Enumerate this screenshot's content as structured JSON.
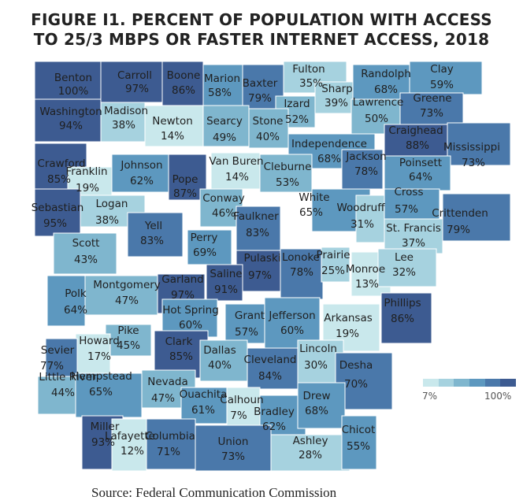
{
  "title_line1": "FIGURE I1. PERCENT OF POPULATION WITH ACCESS",
  "title_line2": "TO 25/3 MBPS OR FASTER INTERNET ACCESS, 2018",
  "source": "Source: Federal Communication Commission",
  "legend": {
    "min_label": "7%",
    "max_label": "100%",
    "colors": [
      "#c9e8ec",
      "#a6d2df",
      "#7fb6ce",
      "#5d98bf",
      "#4a78aa",
      "#3d5b91"
    ]
  },
  "counties": [
    {
      "name": "Benton",
      "value": "100%",
      "pct": 100
    },
    {
      "name": "Carroll",
      "value": "97%",
      "pct": 97
    },
    {
      "name": "Boone",
      "value": "86%",
      "pct": 86
    },
    {
      "name": "Marion",
      "value": "58%",
      "pct": 58
    },
    {
      "name": "Baxter",
      "value": "79%",
      "pct": 79
    },
    {
      "name": "Fulton",
      "value": "35%",
      "pct": 35
    },
    {
      "name": "Sharp",
      "value": "39%",
      "pct": 39
    },
    {
      "name": "Randolph",
      "value": "68%",
      "pct": 68
    },
    {
      "name": "Clay",
      "value": "59%",
      "pct": 59
    },
    {
      "name": "Izard",
      "value": "52%",
      "pct": 52
    },
    {
      "name": "Lawrence",
      "value": "50%",
      "pct": 50
    },
    {
      "name": "Greene",
      "value": "73%",
      "pct": 73
    },
    {
      "name": "Washington",
      "value": "94%",
      "pct": 94
    },
    {
      "name": "Madison",
      "value": "38%",
      "pct": 38
    },
    {
      "name": "Newton",
      "value": "14%",
      "pct": 14
    },
    {
      "name": "Searcy",
      "value": "49%",
      "pct": 49
    },
    {
      "name": "Stone",
      "value": "40%",
      "pct": 40
    },
    {
      "name": "Craighead",
      "value": "88%",
      "pct": 88
    },
    {
      "name": "Mississippi",
      "value": "73%",
      "pct": 73
    },
    {
      "name": "Independence",
      "value": "68%",
      "pct": 68
    },
    {
      "name": "Jackson",
      "value": "78%",
      "pct": 78
    },
    {
      "name": "Poinsett",
      "value": "64%",
      "pct": 64
    },
    {
      "name": "Crawford",
      "value": "85%",
      "pct": 85
    },
    {
      "name": "Franklin",
      "value": "19%",
      "pct": 19
    },
    {
      "name": "Johnson",
      "value": "62%",
      "pct": 62
    },
    {
      "name": "Pope",
      "value": "87%",
      "pct": 87
    },
    {
      "name": "Van Buren",
      "value": "14%",
      "pct": 14
    },
    {
      "name": "Cleburne",
      "value": "53%",
      "pct": 53
    },
    {
      "name": "White",
      "value": "65%",
      "pct": 65
    },
    {
      "name": "Woodruff",
      "value": "31%",
      "pct": 31
    },
    {
      "name": "Cross",
      "value": "57%",
      "pct": 57
    },
    {
      "name": "Crittenden",
      "value": "79%",
      "pct": 79
    },
    {
      "name": "Sebastian",
      "value": "95%",
      "pct": 95
    },
    {
      "name": "Logan",
      "value": "38%",
      "pct": 38
    },
    {
      "name": "Yell",
      "value": "83%",
      "pct": 83
    },
    {
      "name": "Conway",
      "value": "46%",
      "pct": 46
    },
    {
      "name": "Faulkner",
      "value": "83%",
      "pct": 83
    },
    {
      "name": "St. Francis",
      "value": "37%",
      "pct": 37
    },
    {
      "name": "Scott",
      "value": "43%",
      "pct": 43
    },
    {
      "name": "Perry",
      "value": "69%",
      "pct": 69
    },
    {
      "name": "Pulaski",
      "value": "97%",
      "pct": 97
    },
    {
      "name": "Lonoke",
      "value": "78%",
      "pct": 78
    },
    {
      "name": "Prairie",
      "value": "25%",
      "pct": 25
    },
    {
      "name": "Monroe",
      "value": "13%",
      "pct": 13
    },
    {
      "name": "Lee",
      "value": "32%",
      "pct": 32
    },
    {
      "name": "Montgomery",
      "value": "47%",
      "pct": 47
    },
    {
      "name": "Garland",
      "value": "97%",
      "pct": 97
    },
    {
      "name": "Saline",
      "value": "91%",
      "pct": 91
    },
    {
      "name": "Polk",
      "value": "64%",
      "pct": 64
    },
    {
      "name": "Hot Spring",
      "value": "60%",
      "pct": 60
    },
    {
      "name": "Grant",
      "value": "57%",
      "pct": 57
    },
    {
      "name": "Jefferson",
      "value": "60%",
      "pct": 60
    },
    {
      "name": "Arkansas",
      "value": "19%",
      "pct": 19
    },
    {
      "name": "Phillips",
      "value": "86%",
      "pct": 86
    },
    {
      "name": "Pike",
      "value": "45%",
      "pct": 45
    },
    {
      "name": "Howard",
      "value": "17%",
      "pct": 17
    },
    {
      "name": "Sevier",
      "value": "77%",
      "pct": 77
    },
    {
      "name": "Clark",
      "value": "85%",
      "pct": 85
    },
    {
      "name": "Dallas",
      "value": "40%",
      "pct": 40
    },
    {
      "name": "Cleveland",
      "value": "84%",
      "pct": 84
    },
    {
      "name": "Lincoln",
      "value": "30%",
      "pct": 30
    },
    {
      "name": "Desha",
      "value": "70%",
      "pct": 70
    },
    {
      "name": "Little River",
      "value": "44%",
      "pct": 44
    },
    {
      "name": "Hempstead",
      "value": "65%",
      "pct": 65
    },
    {
      "name": "Nevada",
      "value": "47%",
      "pct": 47
    },
    {
      "name": "Ouachita",
      "value": "61%",
      "pct": 61
    },
    {
      "name": "Calhoun",
      "value": "7%",
      "pct": 7
    },
    {
      "name": "Bradley",
      "value": "62%",
      "pct": 62
    },
    {
      "name": "Drew",
      "value": "68%",
      "pct": 68
    },
    {
      "name": "Miller",
      "value": "93%",
      "pct": 93
    },
    {
      "name": "Lafayette",
      "value": "12%",
      "pct": 12
    },
    {
      "name": "Columbia",
      "value": "71%",
      "pct": 71
    },
    {
      "name": "Union",
      "value": "73%",
      "pct": 73
    },
    {
      "name": "Ashley",
      "value": "28%",
      "pct": 28
    },
    {
      "name": "Chicot",
      "value": "55%",
      "pct": 55
    }
  ]
}
